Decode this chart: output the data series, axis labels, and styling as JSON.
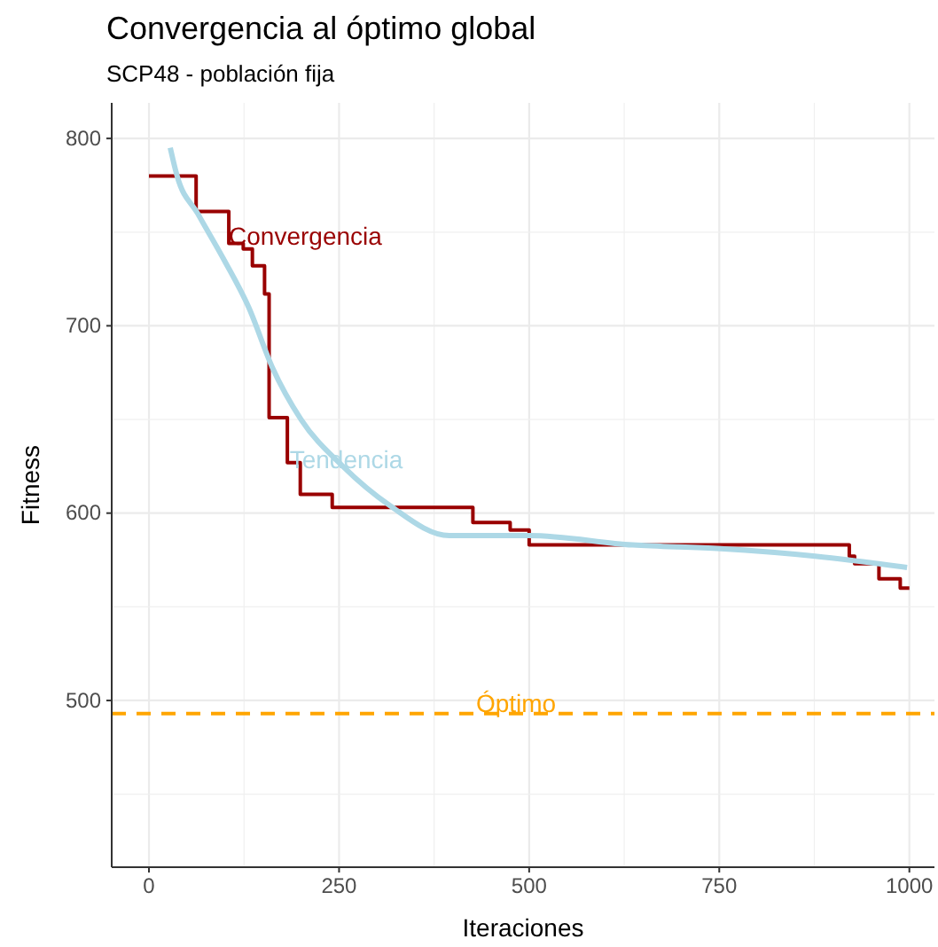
{
  "chart_data": {
    "type": "step",
    "title": "Convergencia al óptimo global",
    "subtitle": "SCP48 - población fija",
    "xlabel": "Iteraciones",
    "ylabel": "Fitness",
    "xlim": [
      -49,
      1033
    ],
    "ylim": [
      411,
      819
    ],
    "xticks": [
      0,
      250,
      500,
      750,
      1000
    ],
    "yticks": [
      500,
      600,
      700,
      800
    ],
    "grid": true,
    "legend": false,
    "series": [
      {
        "name": "Convergencia",
        "type": "step",
        "color": "#990000",
        "x": [
          0,
          62,
          105,
          124,
          136,
          152,
          158,
          182,
          199,
          241,
          426,
          475,
          500,
          921,
          928,
          960,
          988,
          1000
        ],
        "values": [
          780,
          761,
          744,
          741,
          732,
          717,
          651,
          627,
          610,
          603,
          595,
          591,
          583,
          577,
          573,
          565,
          560,
          560
        ]
      },
      {
        "name": "Tendencia",
        "type": "line",
        "color": "#add8e6",
        "x": [
          28,
          37,
          64,
          99,
          131,
          162,
          200,
          255,
          317,
          395,
          450,
          500,
          636,
          752,
          876,
          997
        ],
        "values": [
          795,
          780,
          760,
          735,
          710,
          678,
          650,
          625,
          604,
          588,
          588,
          588,
          583,
          581,
          577,
          571
        ]
      }
    ],
    "ref_lines": [
      {
        "axis": "y",
        "value": 493,
        "label": "Óptimo",
        "color": "#ffa500",
        "line_style": "dashed"
      }
    ]
  }
}
